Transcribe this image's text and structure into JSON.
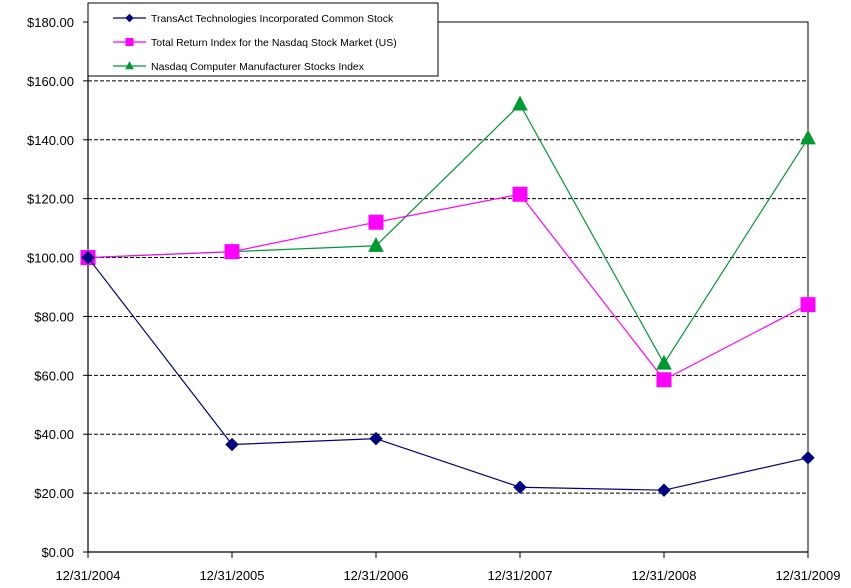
{
  "chart_data": {
    "type": "line",
    "categories": [
      "12/31/2004",
      "12/31/2005",
      "12/31/2006",
      "12/31/2007",
      "12/31/2008",
      "12/31/2009"
    ],
    "ylim": [
      0,
      180
    ],
    "ytick_values": [
      0,
      20,
      40,
      60,
      80,
      100,
      120,
      140,
      160,
      180
    ],
    "ytick_labels": [
      "$0.00",
      "$20.00",
      "$40.00",
      "$60.00",
      "$80.00",
      "$100.00",
      "$120.00",
      "$140.00",
      "$160.00",
      "$180.00"
    ],
    "grid": true,
    "legend_position": "top-left",
    "series": [
      {
        "name": "TransAct Technologies Incorporated Common Stock",
        "values": [
          100,
          36.5,
          38.5,
          22,
          21,
          32
        ],
        "color": "#000080",
        "marker": "diamond"
      },
      {
        "name": "Total Return Index for the Nasdaq Stock Market (US)",
        "values": [
          100,
          102,
          112,
          121.5,
          58.5,
          84
        ],
        "color": "#ff00ff",
        "marker": "square"
      },
      {
        "name": "Nasdaq Computer Manufacturer Stocks Index",
        "values": [
          100,
          102,
          104,
          152,
          64,
          140.5
        ],
        "color": "#009933",
        "marker": "triangle"
      }
    ]
  }
}
